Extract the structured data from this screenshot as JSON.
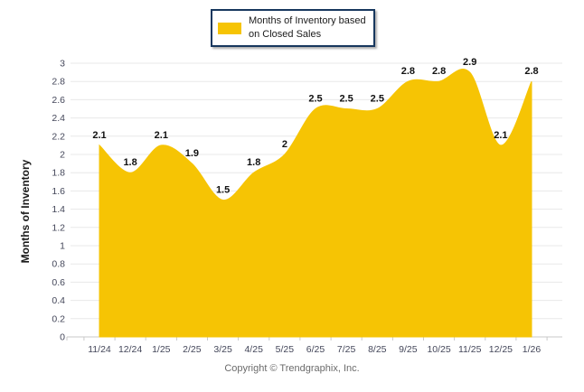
{
  "legend": {
    "label_lines": [
      "Months of Inventory based",
      "on Closed Sales"
    ],
    "swatch_color": "#F6C404",
    "border_color": "#17375E"
  },
  "footer": {
    "copyright": "Copyright © Trendgraphix, Inc."
  },
  "chart_data": {
    "type": "area",
    "title": "",
    "xlabel": "",
    "ylabel": "Months of Inventory",
    "legend_label": "Months of Inventory based on Closed Sales",
    "legend_position": "top-center",
    "grid": true,
    "smooth": true,
    "categories": [
      "11/24",
      "12/24",
      "1/25",
      "2/25",
      "3/25",
      "4/25",
      "5/25",
      "6/25",
      "7/25",
      "8/25",
      "9/25",
      "10/25",
      "11/25",
      "12/25",
      "1/26"
    ],
    "values": [
      2.1,
      1.8,
      2.1,
      1.9,
      1.5,
      1.8,
      2,
      2.5,
      2.5,
      2.5,
      2.8,
      2.8,
      2.9,
      2.1,
      2.8
    ],
    "point_labels": [
      "2.1",
      "1.8",
      "2.1",
      "1.9",
      "1.5",
      "1.8",
      "2",
      "2.5",
      "2.5",
      "2.5",
      "2.8",
      "2.8",
      "2.9",
      "2.1",
      "2.8"
    ],
    "ylim": [
      0,
      3
    ],
    "yticks": [
      "0",
      "0.2",
      "0.4",
      "0.6",
      "0.8",
      "1",
      "1.2",
      "1.4",
      "1.6",
      "1.8",
      "2",
      "2.2",
      "2.4",
      "2.6",
      "2.8",
      "3"
    ],
    "colors": {
      "area_fill": "#F6C404",
      "gridline": "#E8E8E8",
      "axis_line": "#C9C9C9",
      "tick_text": "#44475A",
      "data_label": "#111111"
    }
  }
}
